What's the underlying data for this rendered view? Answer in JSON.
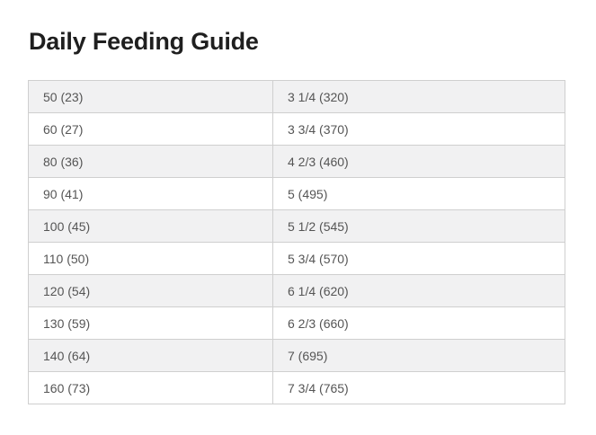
{
  "page": {
    "title": "Daily Feeding Guide"
  },
  "table": {
    "rows": [
      {
        "weight": "50 (23)",
        "amount": "3 1/4 (320)"
      },
      {
        "weight": "60 (27)",
        "amount": "3 3/4 (370)"
      },
      {
        "weight": "80 (36)",
        "amount": "4 2/3 (460)"
      },
      {
        "weight": "90 (41)",
        "amount": "5 (495)"
      },
      {
        "weight": "100 (45)",
        "amount": "5 1/2 (545)"
      },
      {
        "weight": "110 (50)",
        "amount": "5 3/4 (570)"
      },
      {
        "weight": "120 (54)",
        "amount": "6 1/4 (620)"
      },
      {
        "weight": "130 (59)",
        "amount": "6 2/3 (660)"
      },
      {
        "weight": "140 (64)",
        "amount": "7 (695)"
      },
      {
        "weight": "160 (73)",
        "amount": "7 3/4 (765)"
      }
    ]
  },
  "colors": {
    "stripe": "#f1f1f2",
    "border": "#cfcfcf",
    "text": "#555555",
    "title": "#1f1f1f"
  }
}
